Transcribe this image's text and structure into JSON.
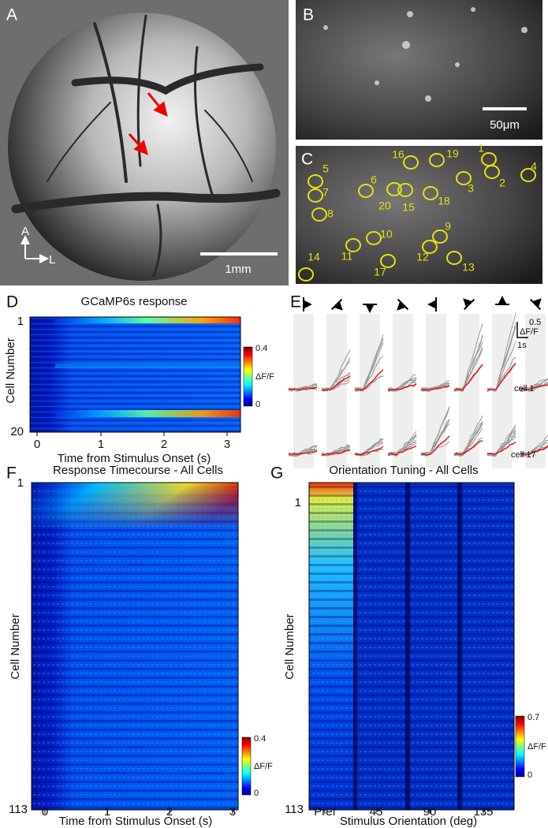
{
  "panels": {
    "A": {
      "label": "A",
      "orient_a": "A",
      "orient_l": "L",
      "scale_bar": "1mm"
    },
    "B": {
      "label": "B",
      "scale_bar": "50μm"
    },
    "C": {
      "label": "C",
      "cells": [
        "1",
        "2",
        "3",
        "4",
        "5",
        "6",
        "7",
        "8",
        "9",
        "10",
        "11",
        "12",
        "13",
        "14",
        "15",
        "16",
        "17",
        "18",
        "19",
        "20"
      ]
    },
    "D": {
      "label": "D",
      "title": "GCaMP6s response",
      "ylabel": "Cell Number",
      "yticks": [
        "1",
        "20"
      ],
      "xlabel": "Time from Stimulus Onset (s)",
      "xticks": [
        "0",
        "1",
        "2",
        "3"
      ],
      "colorbar_ticks": [
        "0.4",
        "0"
      ],
      "colorbar_label": "ΔF/F"
    },
    "E": {
      "label": "E",
      "scale_y": "0.5",
      "scale_unit": "ΔF/F",
      "scale_x": "1s",
      "rows": [
        "cell 1",
        "cell 17"
      ]
    },
    "F": {
      "label": "F",
      "title": "Response Timecourse - All Cells",
      "ylabel": "Cell Number",
      "yticks": [
        "1",
        "113"
      ],
      "xlabel": "Time from Stimulus Onset (s)",
      "xticks": [
        "0",
        "1",
        "2",
        "3"
      ],
      "colorbar_ticks": [
        "0.4",
        "0"
      ],
      "colorbar_label": "ΔF/F"
    },
    "G": {
      "label": "G",
      "title": "Orientation Tuning - All Cells",
      "ylabel": "Cell Number",
      "yticks": [
        "1",
        "113"
      ],
      "xlabel": "Stimulus Orientation (deg)",
      "xticks": [
        "Pref",
        "45",
        "90",
        "135"
      ],
      "colorbar_ticks": [
        "0.7",
        "0"
      ],
      "colorbar_label": "ΔF/F"
    }
  }
}
